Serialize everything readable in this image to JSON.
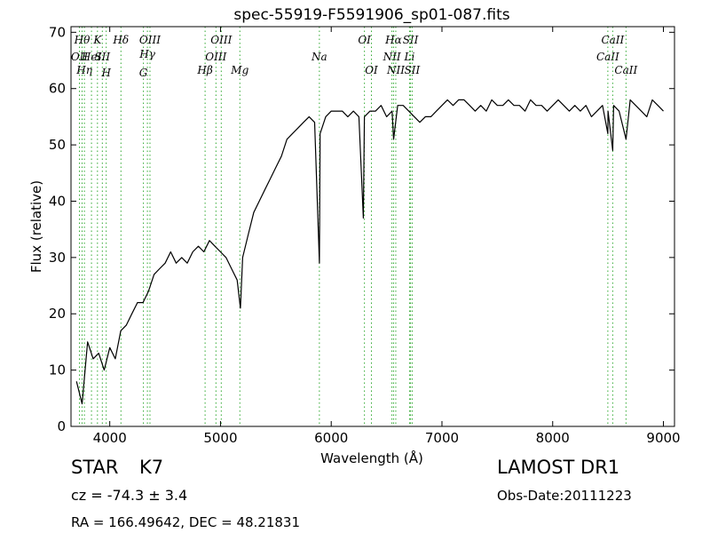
{
  "chart_data": {
    "type": "line",
    "title": "spec-55919-F5591906_sp01-087.fits",
    "xlabel": "Wavelength (Å)",
    "ylabel": "Flux (relative)",
    "xlim": [
      3650,
      9100
    ],
    "ylim": [
      0,
      71
    ],
    "xticks": [
      4000,
      5000,
      6000,
      7000,
      8000,
      9000
    ],
    "yticks": [
      0,
      10,
      20,
      30,
      40,
      50,
      60,
      70
    ],
    "xtick_labels": [
      "4000",
      "5000",
      "6000",
      "7000",
      "8000",
      "9000"
    ],
    "ytick_labels": [
      "0",
      "10",
      "20",
      "30",
      "40",
      "50",
      "60",
      "70"
    ],
    "grid": false,
    "line_color": "#000000",
    "marker_color": "#33aa33",
    "series": [
      {
        "x": [
          3700,
          3750,
          3800,
          3850,
          3900,
          3950,
          4000,
          4050,
          4100,
          4150,
          4200,
          4250,
          4300,
          4350,
          4400,
          4450,
          4500,
          4550,
          4600,
          4650,
          4700,
          4750,
          4800,
          4850,
          4900,
          4950,
          5000,
          5050,
          5100,
          5150,
          5180,
          5200,
          5250,
          5300,
          5350,
          5400,
          5450,
          5500,
          5550,
          5600,
          5650,
          5700,
          5750,
          5800,
          5850,
          5893,
          5900,
          5950,
          6000,
          6050,
          6100,
          6150,
          6200,
          6250,
          6290,
          6300,
          6350,
          6400,
          6450,
          6500,
          6550,
          6563,
          6600,
          6650,
          6700,
          6750,
          6800,
          6850,
          6900,
          6950,
          7000,
          7050,
          7100,
          7150,
          7200,
          7250,
          7300,
          7350,
          7400,
          7450,
          7500,
          7550,
          7600,
          7650,
          7700,
          7750,
          7800,
          7850,
          7900,
          7950,
          8000,
          8050,
          8100,
          8150,
          8200,
          8250,
          8300,
          8350,
          8400,
          8450,
          8498,
          8500,
          8542,
          8550,
          8600,
          8662,
          8700,
          8750,
          8800,
          8850,
          8900,
          8950,
          9000
        ],
        "y": [
          8,
          4,
          15,
          12,
          13,
          10,
          14,
          12,
          17,
          18,
          20,
          22,
          22,
          24,
          27,
          28,
          29,
          31,
          29,
          30,
          29,
          31,
          32,
          31,
          33,
          32,
          31,
          30,
          28,
          26,
          21,
          30,
          34,
          38,
          40,
          42,
          44,
          46,
          48,
          51,
          52,
          53,
          54,
          55,
          54,
          29,
          52,
          55,
          56,
          56,
          56,
          55,
          56,
          55,
          37,
          55,
          56,
          56,
          57,
          55,
          56,
          51,
          57,
          57,
          56,
          55,
          54,
          55,
          55,
          56,
          57,
          58,
          57,
          58,
          58,
          57,
          56,
          57,
          56,
          58,
          57,
          57,
          58,
          57,
          57,
          56,
          58,
          57,
          57,
          56,
          57,
          58,
          57,
          56,
          57,
          56,
          57,
          55,
          56,
          57,
          52,
          56,
          49,
          57,
          56,
          51,
          58,
          57,
          56,
          55,
          58,
          57,
          56
        ]
      }
    ],
    "line_markers": [
      {
        "x": 3726,
        "labels": [
          "OII"
        ],
        "row": 3
      },
      {
        "x": 3750,
        "labels": [
          "Hθ"
        ],
        "row": 1
      },
      {
        "x": 3771,
        "labels": [
          "Hη"
        ],
        "row": 4
      },
      {
        "x": 3835,
        "labels": [
          "HeI"
        ],
        "row": 3
      },
      {
        "x": 3889,
        "labels": [
          "K"
        ],
        "row": 1
      },
      {
        "x": 3933,
        "labels": [
          "SII"
        ],
        "row": 3
      },
      {
        "x": 3968,
        "labels": [
          "H"
        ],
        "row": 5
      },
      {
        "x": 4101,
        "labels": [
          "Hδ"
        ],
        "row": 1
      },
      {
        "x": 4304,
        "labels": [
          "G"
        ],
        "row": 5
      },
      {
        "x": 4340,
        "labels": [
          "Hγ"
        ],
        "row": 2
      },
      {
        "x": 4363,
        "labels": [
          "OIII"
        ],
        "row": 1
      },
      {
        "x": 4861,
        "labels": [
          "Hβ"
        ],
        "row": 4
      },
      {
        "x": 4959,
        "labels": [
          "OIII"
        ],
        "row": 3
      },
      {
        "x": 5007,
        "labels": [
          "OIII"
        ],
        "row": 1
      },
      {
        "x": 5175,
        "labels": [
          "Mg"
        ],
        "row": 4
      },
      {
        "x": 5893,
        "labels": [
          "Na"
        ],
        "row": 3
      },
      {
        "x": 6300,
        "labels": [
          "OI"
        ],
        "row": 1
      },
      {
        "x": 6363,
        "labels": [
          "OI"
        ],
        "row": 4
      },
      {
        "x": 6548,
        "labels": [
          "NII"
        ],
        "row": 3
      },
      {
        "x": 6563,
        "labels": [
          "Hα"
        ],
        "row": 1
      },
      {
        "x": 6583,
        "labels": [
          "NII"
        ],
        "row": 4
      },
      {
        "x": 6707,
        "labels": [
          "Li"
        ],
        "row": 3
      },
      {
        "x": 6716,
        "labels": [
          "SII"
        ],
        "row": 1
      },
      {
        "x": 6731,
        "labels": [
          "SII"
        ],
        "row": 4
      },
      {
        "x": 8498,
        "labels": [
          "CaII"
        ],
        "row": 3
      },
      {
        "x": 8542,
        "labels": [
          "CaII"
        ],
        "row": 1
      },
      {
        "x": 8662,
        "labels": [
          "CaII"
        ],
        "row": 4
      }
    ]
  },
  "info": {
    "class_label": "STAR",
    "subclass_label": "K7",
    "survey": "LAMOST DR1",
    "cz": "cz = -74.3 ± 3.4",
    "obs_date": "Obs-Date:20111223",
    "coords": "RA = 166.49642, DEC = 48.21831"
  }
}
